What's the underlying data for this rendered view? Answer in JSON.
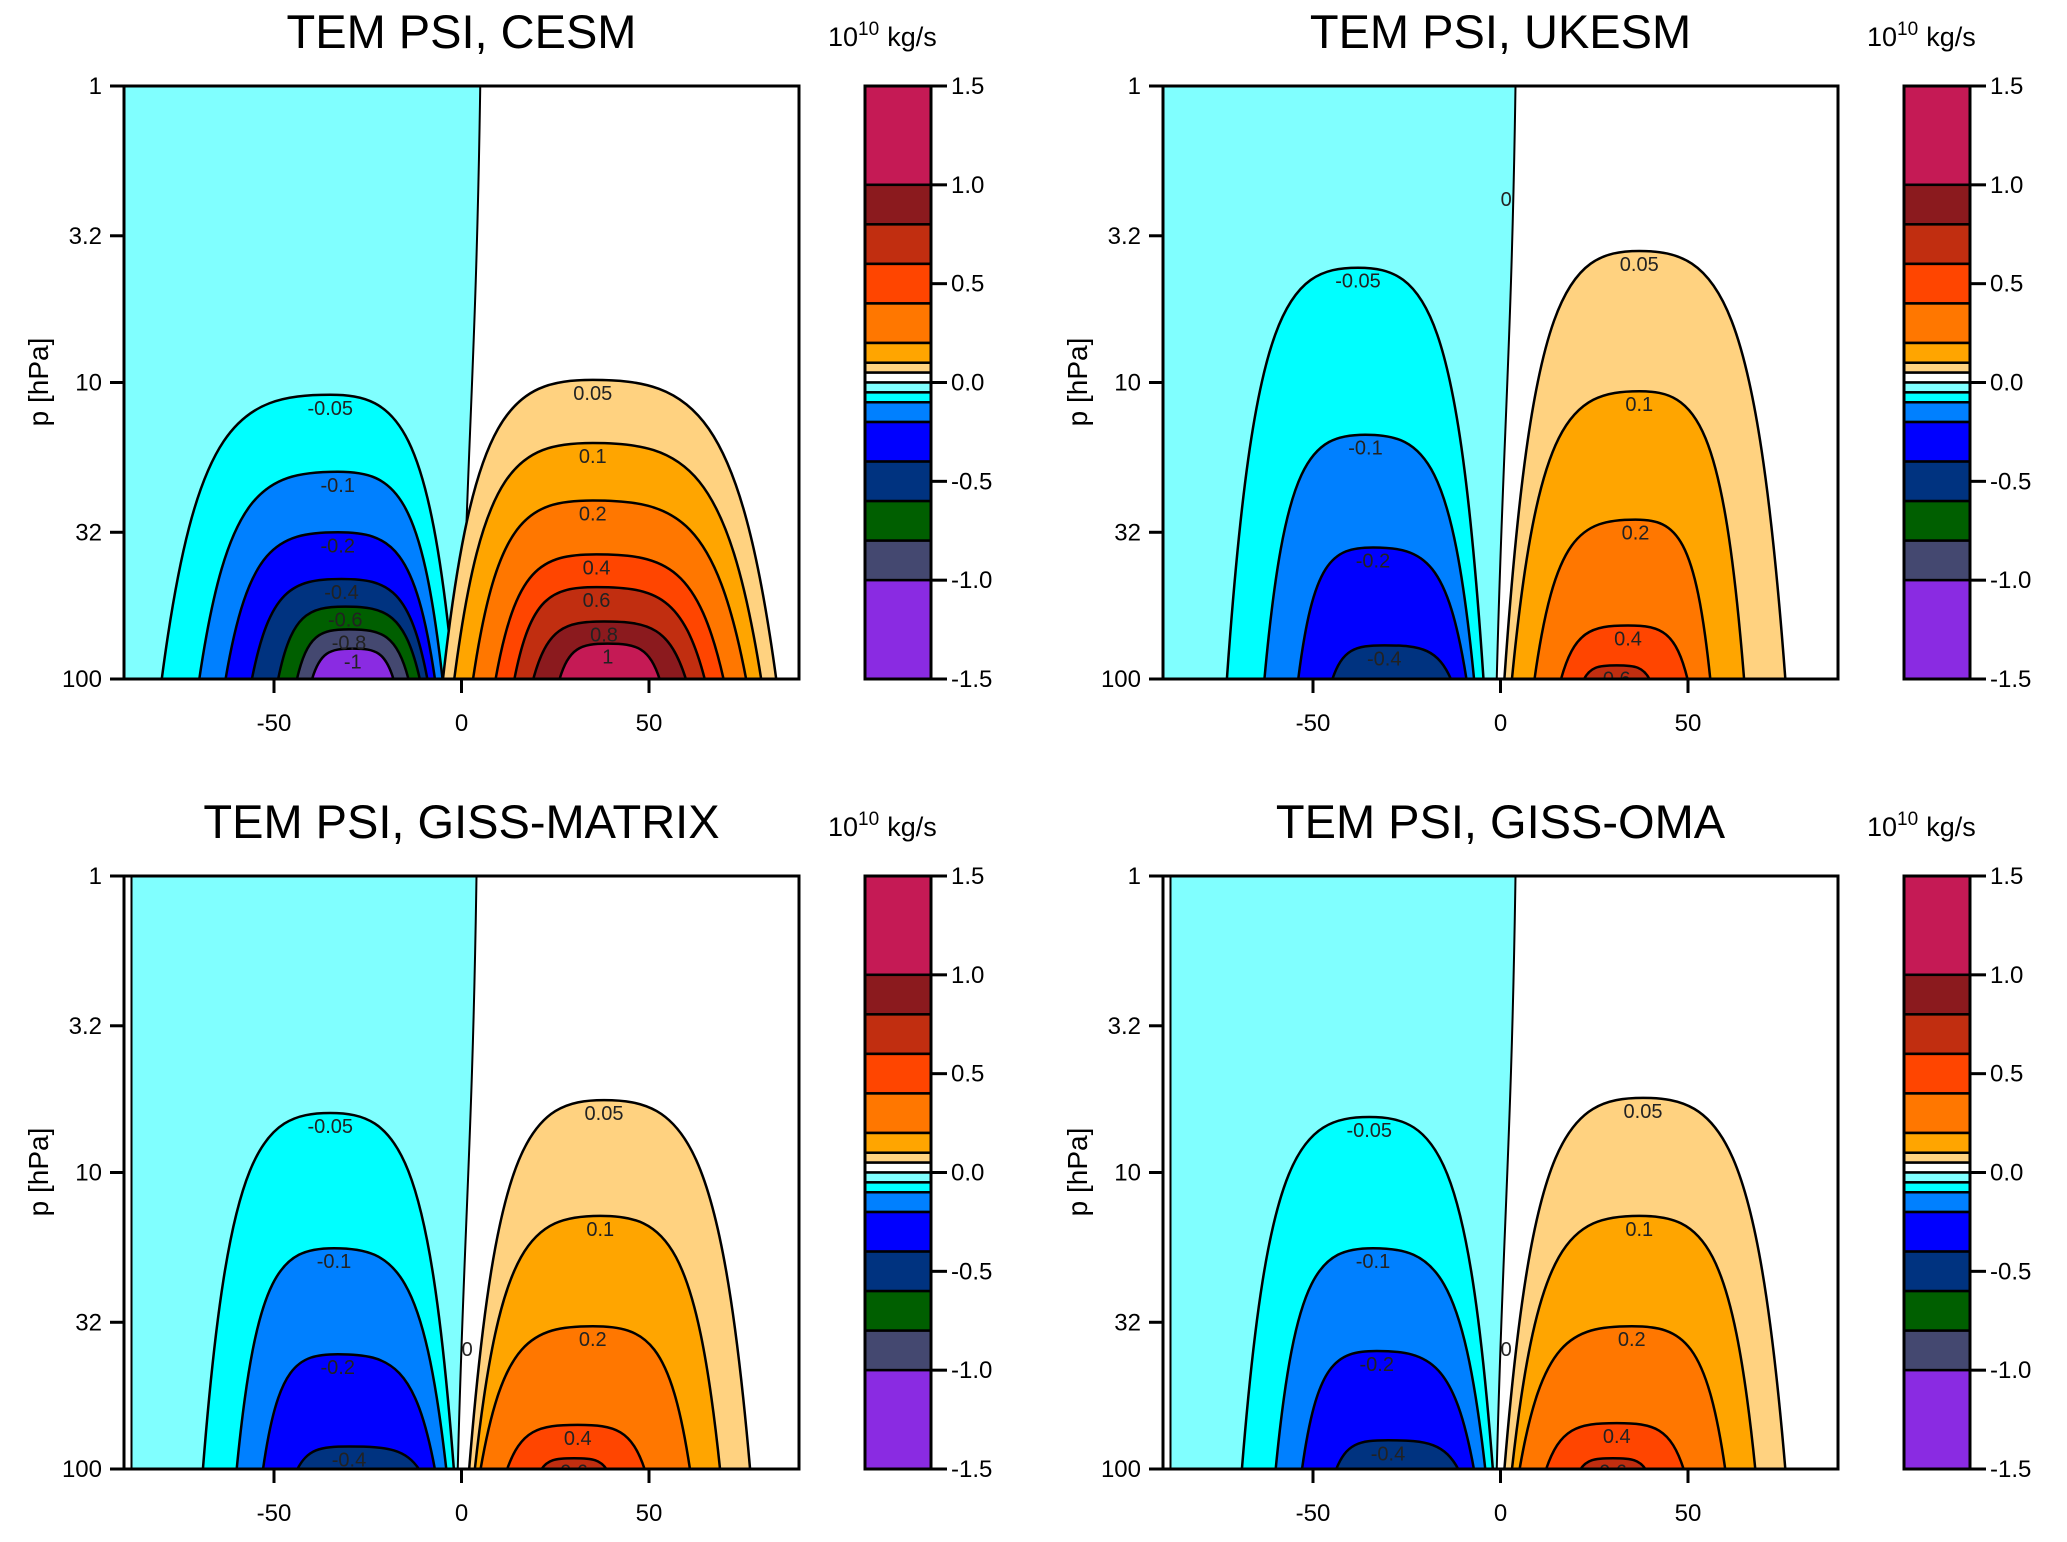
{
  "chart_data": [
    {
      "type": "contour",
      "title": "TEM PSI, CESM",
      "ylabel": "p [hPa]",
      "colorbar_label": "10^10 kg/s",
      "colorbar_label_base": "10",
      "colorbar_label_exp": "10",
      "colorbar_label_unit": "kg/s",
      "x_ticks": [
        "-50",
        "0",
        "50"
      ],
      "y_ticks": [
        "1",
        "3.2",
        "10",
        "32",
        "100"
      ],
      "colorbar_ticks": [
        "1.5",
        "1.0",
        "0.5",
        "0.0",
        "-0.5",
        "-1.0",
        "-1.5"
      ],
      "xlim": [
        -90,
        90
      ],
      "ylim": [
        100,
        1
      ],
      "y_scale": "log",
      "zero_line": {
        "lat_top": 5,
        "lat_bottom": 0,
        "lat_left_edge": -90
      },
      "contours": [
        {
          "level": -0.05,
          "label": "-0.05",
          "lat_min": -80,
          "lat_max": -2,
          "lat_peak": -35,
          "p_top": 11
        },
        {
          "level": -0.1,
          "label": "-0.1",
          "lat_min": -70,
          "lat_max": -5,
          "lat_peak": -33,
          "p_top": 20
        },
        {
          "level": -0.2,
          "label": "-0.2",
          "lat_min": -63,
          "lat_max": -7,
          "lat_peak": -33,
          "p_top": 32
        },
        {
          "level": -0.4,
          "label": "-0.4",
          "lat_min": -56,
          "lat_max": -9,
          "lat_peak": -32,
          "p_top": 46
        },
        {
          "level": -0.6,
          "label": "-0.6",
          "lat_min": -49,
          "lat_max": -11,
          "lat_peak": -31,
          "p_top": 57
        },
        {
          "level": -0.8,
          "label": "-0.8",
          "lat_min": -44,
          "lat_max": -14,
          "lat_peak": -30,
          "p_top": 68
        },
        {
          "level": -1.0,
          "label": "-1",
          "lat_min": -40,
          "lat_max": -18,
          "lat_peak": -29,
          "p_top": 79
        },
        {
          "level": 0.05,
          "label": "0.05",
          "lat_min": -5,
          "lat_max": 84,
          "lat_peak": 35,
          "p_top": 9.8
        },
        {
          "level": 0.1,
          "label": "0.1",
          "lat_min": -2,
          "lat_max": 80,
          "lat_peak": 35,
          "p_top": 16
        },
        {
          "level": 0.2,
          "label": "0.2",
          "lat_min": 3,
          "lat_max": 76,
          "lat_peak": 35,
          "p_top": 25
        },
        {
          "level": 0.4,
          "label": "0.4",
          "lat_min": 9,
          "lat_max": 70,
          "lat_peak": 36,
          "p_top": 38
        },
        {
          "level": 0.6,
          "label": "0.6",
          "lat_min": 14,
          "lat_max": 65,
          "lat_peak": 36,
          "p_top": 49
        },
        {
          "level": 0.8,
          "label": "0.8",
          "lat_min": 19,
          "lat_max": 60,
          "lat_peak": 38,
          "p_top": 64
        },
        {
          "level": 1.0,
          "label": "1",
          "lat_min": 26,
          "lat_max": 53,
          "lat_peak": 39,
          "p_top": 76
        }
      ]
    },
    {
      "type": "contour",
      "title": "TEM PSI, UKESM",
      "ylabel": "p [hPa]",
      "colorbar_label": "10^10 kg/s",
      "colorbar_label_base": "10",
      "colorbar_label_exp": "10",
      "colorbar_label_unit": "kg/s",
      "x_ticks": [
        "-50",
        "0",
        "50"
      ],
      "y_ticks": [
        "1",
        "3.2",
        "10",
        "32",
        "100"
      ],
      "colorbar_ticks": [
        "1.5",
        "1.0",
        "0.5",
        "0.0",
        "-0.5",
        "-1.0",
        "-1.5"
      ],
      "xlim": [
        -90,
        90
      ],
      "ylim": [
        100,
        1
      ],
      "y_scale": "log",
      "zero_line": {
        "lat_top": 4,
        "lat_bottom": -1,
        "lat_left_edge": -90,
        "label": "0"
      },
      "contours": [
        {
          "level": -0.05,
          "label": "-0.05",
          "lat_min": -73,
          "lat_max": -4.5,
          "lat_peak": -38,
          "p_top": 4.1
        },
        {
          "level": -0.1,
          "label": "-0.1",
          "lat_min": -63,
          "lat_max": -7,
          "lat_peak": -36,
          "p_top": 15
        },
        {
          "level": -0.2,
          "label": "-0.2",
          "lat_min": -54,
          "lat_max": -9,
          "lat_peak": -34,
          "p_top": 36
        },
        {
          "level": -0.4,
          "label": "-0.4",
          "lat_min": -45,
          "lat_max": -13,
          "lat_peak": -31,
          "p_top": 77
        },
        {
          "level": 0.05,
          "label": "0.05",
          "lat_min": 1,
          "lat_max": 76,
          "lat_peak": 37,
          "p_top": 3.6
        },
        {
          "level": 0.1,
          "label": "0.1",
          "lat_min": 3,
          "lat_max": 65,
          "lat_peak": 37,
          "p_top": 10.7
        },
        {
          "level": 0.2,
          "label": "0.2",
          "lat_min": 9,
          "lat_max": 56,
          "lat_peak": 36,
          "p_top": 29
        },
        {
          "level": 0.4,
          "label": "0.4",
          "lat_min": 16,
          "lat_max": 50,
          "lat_peak": 34,
          "p_top": 66
        },
        {
          "level": 0.6,
          "label": "0.6",
          "lat_min": 22,
          "lat_max": 40,
          "lat_peak": 31,
          "p_top": 90
        }
      ]
    },
    {
      "type": "contour",
      "title": "TEM PSI, GISS-MATRIX",
      "ylabel": "p [hPa]",
      "colorbar_label": "10^10 kg/s",
      "colorbar_label_base": "10",
      "colorbar_label_exp": "10",
      "colorbar_label_unit": "kg/s",
      "x_ticks": [
        "-50",
        "0",
        "50"
      ],
      "y_ticks": [
        "1",
        "3.2",
        "10",
        "32",
        "100"
      ],
      "colorbar_ticks": [
        "1.5",
        "1.0",
        "0.5",
        "0.0",
        "-0.5",
        "-1.0",
        "-1.5"
      ],
      "xlim": [
        -90,
        90
      ],
      "ylim": [
        100,
        1
      ],
      "y_scale": "log",
      "zero_line": {
        "lat_top": 4,
        "lat_bottom": -1,
        "lat_left_edge": -88,
        "label": "0"
      },
      "contours": [
        {
          "level": -0.05,
          "label": "-0.05",
          "lat_min": -69,
          "lat_max": -2,
          "lat_peak": -35,
          "p_top": 6.3
        },
        {
          "level": -0.1,
          "label": "-0.1",
          "lat_min": -60,
          "lat_max": -4,
          "lat_peak": -34,
          "p_top": 18
        },
        {
          "level": -0.2,
          "label": "-0.2",
          "lat_min": -53,
          "lat_max": -7,
          "lat_peak": -33,
          "p_top": 41
        },
        {
          "level": -0.4,
          "label": "-0.4",
          "lat_min": -44,
          "lat_max": -11,
          "lat_peak": -30,
          "p_top": 84
        },
        {
          "level": 0.05,
          "label": "0.05",
          "lat_min": 2,
          "lat_max": 77,
          "lat_peak": 38,
          "p_top": 5.7
        },
        {
          "level": 0.1,
          "label": "0.1",
          "lat_min": 3.5,
          "lat_max": 69,
          "lat_peak": 37,
          "p_top": 14
        },
        {
          "level": 0.2,
          "label": "0.2",
          "lat_min": 5,
          "lat_max": 61,
          "lat_peak": 35,
          "p_top": 33
        },
        {
          "level": 0.4,
          "label": "0.4",
          "lat_min": 12,
          "lat_max": 49,
          "lat_peak": 31,
          "p_top": 71
        },
        {
          "level": 0.6,
          "label": "0.6",
          "lat_min": 21,
          "lat_max": 39,
          "lat_peak": 30,
          "p_top": 92
        }
      ]
    },
    {
      "type": "contour",
      "title": "TEM PSI, GISS-OMA",
      "ylabel": "p [hPa]",
      "colorbar_label": "10^10 kg/s",
      "colorbar_label_base": "10",
      "colorbar_label_exp": "10",
      "colorbar_label_unit": "kg/s",
      "x_ticks": [
        "-50",
        "0",
        "50"
      ],
      "y_ticks": [
        "1",
        "3.2",
        "10",
        "32",
        "100"
      ],
      "colorbar_ticks": [
        "1.5",
        "1.0",
        "0.5",
        "0.0",
        "-0.5",
        "-1.0",
        "-1.5"
      ],
      "xlim": [
        -90,
        90
      ],
      "ylim": [
        100,
        1
      ],
      "y_scale": "log",
      "zero_line": {
        "lat_top": 4,
        "lat_bottom": -1,
        "lat_left_edge": -88,
        "label": "0"
      },
      "contours": [
        {
          "level": -0.05,
          "label": "-0.05",
          "lat_min": -69,
          "lat_max": -2,
          "lat_peak": -35,
          "p_top": 6.5
        },
        {
          "level": -0.1,
          "label": "-0.1",
          "lat_min": -60,
          "lat_max": -4,
          "lat_peak": -34,
          "p_top": 18
        },
        {
          "level": -0.2,
          "label": "-0.2",
          "lat_min": -53,
          "lat_max": -7,
          "lat_peak": -33,
          "p_top": 40
        },
        {
          "level": -0.4,
          "label": "-0.4",
          "lat_min": -44,
          "lat_max": -11,
          "lat_peak": -30,
          "p_top": 80
        },
        {
          "level": 0.05,
          "label": "0.05",
          "lat_min": 1,
          "lat_max": 76,
          "lat_peak": 38,
          "p_top": 5.6
        },
        {
          "level": 0.1,
          "label": "0.1",
          "lat_min": 3,
          "lat_max": 68,
          "lat_peak": 37,
          "p_top": 14
        },
        {
          "level": 0.2,
          "label": "0.2",
          "lat_min": 5,
          "lat_max": 60,
          "lat_peak": 35,
          "p_top": 33
        },
        {
          "level": 0.4,
          "label": "0.4",
          "lat_min": 12,
          "lat_max": 49,
          "lat_peak": 31,
          "p_top": 70
        },
        {
          "level": 0.6,
          "label": "0.6",
          "lat_min": 21,
          "lat_max": 39,
          "lat_peak": 30,
          "p_top": 92
        }
      ]
    }
  ],
  "colorbar": {
    "range": [
      -1.5,
      1.5
    ],
    "bands": [
      {
        "from": 1.0,
        "to": 1.5,
        "color": "#C51A55"
      },
      {
        "from": 0.8,
        "to": 1.0,
        "color": "#8B1A1E"
      },
      {
        "from": 0.6,
        "to": 0.8,
        "color": "#C12E10"
      },
      {
        "from": 0.4,
        "to": 0.6,
        "color": "#FF4500"
      },
      {
        "from": 0.2,
        "to": 0.4,
        "color": "#FF7700"
      },
      {
        "from": 0.1,
        "to": 0.2,
        "color": "#FFA500"
      },
      {
        "from": 0.05,
        "to": 0.1,
        "color": "#FFD280"
      },
      {
        "from": 0.0,
        "to": 0.05,
        "color": "#FFFFFF"
      },
      {
        "from": -0.05,
        "to": 0.0,
        "color": "#80FFFF"
      },
      {
        "from": -0.1,
        "to": -0.05,
        "color": "#00FFFF"
      },
      {
        "from": -0.2,
        "to": -0.1,
        "color": "#0080FF"
      },
      {
        "from": -0.4,
        "to": -0.2,
        "color": "#0000FF"
      },
      {
        "from": -0.6,
        "to": -0.4,
        "color": "#003380"
      },
      {
        "from": -0.8,
        "to": -0.6,
        "color": "#005F00"
      },
      {
        "from": -1.0,
        "to": -0.8,
        "color": "#444870"
      },
      {
        "from": -1.5,
        "to": -1.0,
        "color": "#8A2BE2"
      }
    ]
  }
}
